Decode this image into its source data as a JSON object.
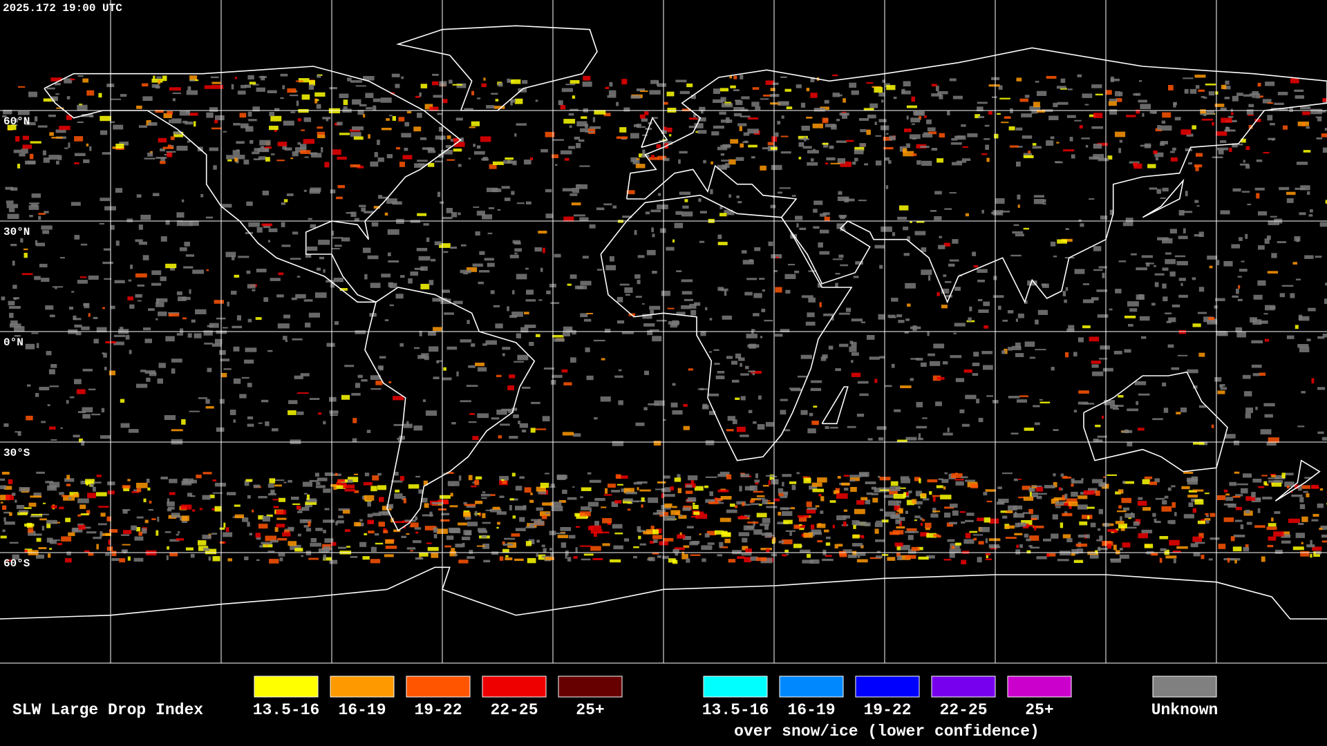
{
  "header": {
    "timestamp": "2025.172 19:00 UTC"
  },
  "map": {
    "latitude_labels": [
      "60°N",
      "30°N",
      "0°N",
      "30°S",
      "60°S"
    ]
  },
  "legend": {
    "title": "SLW Large Drop Index",
    "warm": [
      {
        "label": "13.5-16",
        "color": "#ffff00"
      },
      {
        "label": "16-19",
        "color": "#ff9900"
      },
      {
        "label": "19-22",
        "color": "#ff5500"
      },
      {
        "label": "22-25",
        "color": "#ee0000"
      },
      {
        "label": "25+",
        "color": "#660000"
      }
    ],
    "cold": [
      {
        "label": "13.5-16",
        "color": "#00ffff"
      },
      {
        "label": "16-19",
        "color": "#0088ff"
      },
      {
        "label": "19-22",
        "color": "#0000ff"
      },
      {
        "label": "22-25",
        "color": "#7700ee"
      },
      {
        "label": "25+",
        "color": "#cc00cc"
      }
    ],
    "cold_caption": "over snow/ice (lower confidence)",
    "unknown": {
      "label": "Unknown",
      "color": "#808080"
    }
  }
}
